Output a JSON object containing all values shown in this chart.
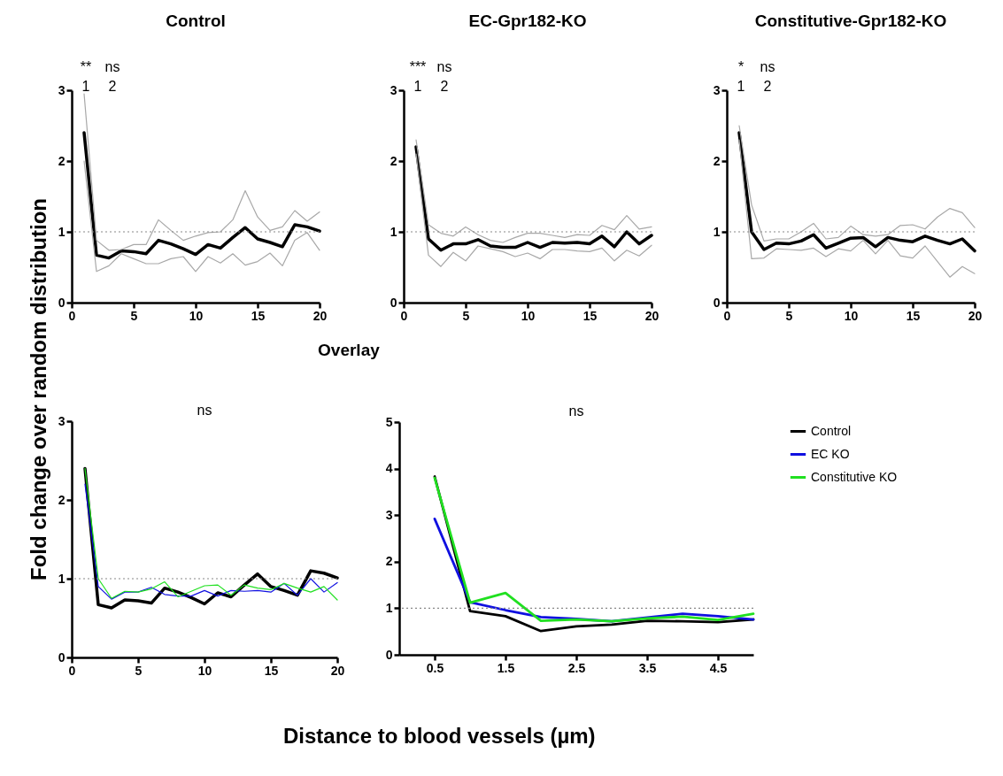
{
  "chart_data": [
    {
      "type": "line",
      "title": "Control",
      "x": [
        1,
        2,
        3,
        4,
        5,
        6,
        7,
        8,
        9,
        10,
        11,
        12,
        13,
        14,
        15,
        16,
        17,
        18,
        19,
        20
      ],
      "xlim": [
        0,
        20
      ],
      "xticks": [
        0,
        5,
        10,
        15,
        20
      ],
      "ylim": [
        0,
        3
      ],
      "yticks": [
        0,
        1,
        2,
        3
      ],
      "grid": false,
      "marker": "none",
      "line_style": "solid",
      "series": [
        {
          "color": "#000000",
          "values": [
            2.4,
            0.67,
            0.63,
            0.73,
            0.72,
            0.69,
            0.88,
            0.83,
            0.76,
            0.68,
            0.82,
            0.77,
            0.92,
            1.06,
            0.9,
            0.85,
            0.79,
            1.1,
            1.07,
            1.01
          ]
        },
        {
          "color": "#a8a8a8",
          "values": [
            2.95,
            0.88,
            0.74,
            0.75,
            0.82,
            0.82,
            1.17,
            1.02,
            0.88,
            0.94,
            0.99,
            1.0,
            1.17,
            1.58,
            1.21,
            1.02,
            1.07,
            1.3,
            1.15,
            1.28
          ]
        },
        {
          "color": "#a8a8a8",
          "values": [
            2.0,
            0.44,
            0.52,
            0.69,
            0.62,
            0.55,
            0.55,
            0.62,
            0.65,
            0.44,
            0.65,
            0.56,
            0.69,
            0.53,
            0.58,
            0.7,
            0.52,
            0.88,
            0.99,
            0.74
          ]
        }
      ],
      "ref_lines": [
        {
          "axis": "y",
          "value": 1,
          "color": "#888888",
          "line_style": "dotted"
        }
      ],
      "annotations": [
        "**",
        "ns",
        "1",
        "2"
      ]
    },
    {
      "type": "line",
      "title": "EC-Gpr182-KO",
      "x": [
        1,
        2,
        3,
        4,
        5,
        6,
        7,
        8,
        9,
        10,
        11,
        12,
        13,
        14,
        15,
        16,
        17,
        18,
        19,
        20
      ],
      "xlim": [
        0,
        20
      ],
      "xticks": [
        0,
        5,
        10,
        15,
        20
      ],
      "ylim": [
        0,
        3
      ],
      "yticks": [
        0,
        1,
        2,
        3
      ],
      "grid": false,
      "marker": "none",
      "line_style": "solid",
      "series": [
        {
          "color": "#000000",
          "values": [
            2.2,
            0.9,
            0.74,
            0.83,
            0.83,
            0.89,
            0.8,
            0.78,
            0.78,
            0.85,
            0.78,
            0.85,
            0.84,
            0.85,
            0.83,
            0.94,
            0.79,
            1.0,
            0.83,
            0.95
          ]
        },
        {
          "color": "#a8a8a8",
          "values": [
            2.3,
            1.1,
            0.98,
            0.94,
            1.07,
            0.96,
            0.88,
            0.85,
            0.92,
            0.98,
            0.98,
            0.95,
            0.92,
            0.96,
            0.95,
            1.09,
            1.03,
            1.23,
            1.04,
            1.07
          ]
        },
        {
          "color": "#a8a8a8",
          "values": [
            2.1,
            0.67,
            0.51,
            0.71,
            0.59,
            0.8,
            0.76,
            0.72,
            0.65,
            0.7,
            0.62,
            0.75,
            0.75,
            0.73,
            0.72,
            0.77,
            0.59,
            0.74,
            0.66,
            0.81
          ]
        }
      ],
      "ref_lines": [
        {
          "axis": "y",
          "value": 1,
          "color": "#888888",
          "line_style": "dotted"
        }
      ],
      "annotations": [
        "***",
        "ns",
        "1",
        "2"
      ]
    },
    {
      "type": "line",
      "title": "Constitutive-Gpr182-KO",
      "x": [
        1,
        2,
        3,
        4,
        5,
        6,
        7,
        8,
        9,
        10,
        11,
        12,
        13,
        14,
        15,
        16,
        17,
        18,
        19,
        20
      ],
      "xlim": [
        0,
        20
      ],
      "xticks": [
        0,
        5,
        10,
        15,
        20
      ],
      "ylim": [
        0,
        3
      ],
      "yticks": [
        0,
        1,
        2,
        3
      ],
      "grid": false,
      "marker": "none",
      "line_style": "solid",
      "series": [
        {
          "color": "#000000",
          "values": [
            2.4,
            1.0,
            0.75,
            0.84,
            0.83,
            0.87,
            0.96,
            0.77,
            0.84,
            0.91,
            0.92,
            0.79,
            0.92,
            0.88,
            0.86,
            0.94,
            0.88,
            0.83,
            0.9,
            0.73
          ]
        },
        {
          "color": "#a8a8a8",
          "values": [
            2.5,
            1.38,
            0.87,
            0.9,
            0.9,
            1.0,
            1.12,
            0.9,
            0.92,
            1.08,
            0.96,
            0.94,
            0.96,
            1.09,
            1.1,
            1.04,
            1.21,
            1.33,
            1.27,
            1.06
          ]
        },
        {
          "color": "#a8a8a8",
          "values": [
            2.3,
            0.62,
            0.63,
            0.76,
            0.75,
            0.74,
            0.77,
            0.65,
            0.76,
            0.73,
            0.88,
            0.69,
            0.88,
            0.66,
            0.63,
            0.8,
            0.58,
            0.36,
            0.51,
            0.41
          ]
        }
      ],
      "ref_lines": [
        {
          "axis": "y",
          "value": 1,
          "color": "#888888",
          "line_style": "dotted"
        }
      ],
      "annotations": [
        "*",
        "ns",
        "1",
        "2"
      ]
    },
    {
      "type": "line",
      "title": "Overlay",
      "xlabel": "Distance to blood vessels (µm)",
      "ylabel": "Fold change over random distribution",
      "x": [
        1,
        2,
        3,
        4,
        5,
        6,
        7,
        8,
        9,
        10,
        11,
        12,
        13,
        14,
        15,
        16,
        17,
        18,
        19,
        20
      ],
      "xlim": [
        0,
        20
      ],
      "xticks": [
        0,
        5,
        10,
        15,
        20
      ],
      "ylim": [
        0,
        3
      ],
      "yticks": [
        0,
        1,
        2,
        3
      ],
      "grid": false,
      "marker": "none",
      "line_style": "solid",
      "series": [
        {
          "color": "#000000",
          "values": [
            2.4,
            0.67,
            0.63,
            0.73,
            0.72,
            0.69,
            0.88,
            0.83,
            0.76,
            0.68,
            0.82,
            0.77,
            0.92,
            1.06,
            0.9,
            0.85,
            0.79,
            1.1,
            1.07,
            1.01
          ]
        },
        {
          "color": "#1010e0",
          "values": [
            2.2,
            0.9,
            0.74,
            0.83,
            0.83,
            0.89,
            0.8,
            0.78,
            0.78,
            0.85,
            0.78,
            0.85,
            0.84,
            0.85,
            0.83,
            0.94,
            0.79,
            1.0,
            0.83,
            0.95
          ]
        },
        {
          "color": "#20e020",
          "values": [
            2.4,
            1.0,
            0.75,
            0.84,
            0.83,
            0.87,
            0.96,
            0.77,
            0.84,
            0.91,
            0.92,
            0.79,
            0.92,
            0.88,
            0.86,
            0.94,
            0.88,
            0.83,
            0.9,
            0.73
          ]
        }
      ],
      "ref_lines": [
        {
          "axis": "y",
          "value": 1,
          "color": "#888888",
          "line_style": "dotted"
        }
      ],
      "annotations": [
        "ns"
      ]
    },
    {
      "type": "line",
      "x": [
        0.5,
        1,
        1.5,
        2,
        2.5,
        3,
        3.5,
        4,
        4.5,
        5
      ],
      "xlim": [
        0,
        5
      ],
      "xticks": [
        0.5,
        1.5,
        2.5,
        3.5,
        4.5
      ],
      "ylim": [
        0,
        5
      ],
      "yticks": [
        0,
        1,
        2,
        3,
        4,
        5
      ],
      "grid": false,
      "legend": "right",
      "marker": "none",
      "line_style": "solid",
      "series": [
        {
          "name": "Control",
          "color": "#000000",
          "values": [
            3.83,
            0.94,
            0.83,
            0.51,
            0.61,
            0.65,
            0.73,
            0.72,
            0.7,
            0.76
          ]
        },
        {
          "name": "EC KO",
          "color": "#1010e0",
          "values": [
            2.92,
            1.13,
            0.96,
            0.81,
            0.77,
            0.72,
            0.8,
            0.88,
            0.83,
            0.76
          ]
        },
        {
          "name": "Constitutive KO",
          "color": "#20e020",
          "values": [
            3.8,
            1.12,
            1.33,
            0.73,
            0.76,
            0.72,
            0.78,
            0.82,
            0.75,
            0.88
          ]
        }
      ],
      "ref_lines": [
        {
          "axis": "y",
          "value": 1,
          "color": "#888888",
          "line_style": "dotted"
        }
      ],
      "annotations": [
        "ns"
      ]
    }
  ]
}
